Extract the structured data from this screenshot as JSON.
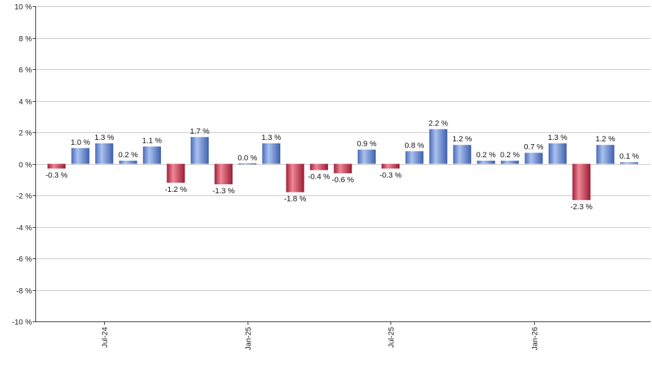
{
  "chart_data": {
    "type": "bar",
    "title": "",
    "xlabel": "",
    "ylabel": "",
    "ylim": [
      -10,
      10
    ],
    "grid": true,
    "legend": "none",
    "y_ticks": [
      "10 %",
      "8 %",
      "6 %",
      "4 %",
      "2 %",
      "0 %",
      "-2 %",
      "-4 %",
      "-6 %",
      "-8 %",
      "-10 %"
    ],
    "x_ticks": [
      {
        "label": "Jul-24",
        "index": 2
      },
      {
        "label": "Jan-25",
        "index": 8
      },
      {
        "label": "Jul-25",
        "index": 14
      },
      {
        "label": "Jan-26",
        "index": 20
      }
    ],
    "values": [
      -0.3,
      1.0,
      1.3,
      0.2,
      1.1,
      -1.2,
      1.7,
      -1.3,
      0.0,
      1.3,
      -1.8,
      -0.4,
      -0.6,
      0.9,
      -0.3,
      0.8,
      2.2,
      1.2,
      0.2,
      0.2,
      0.7,
      1.3,
      -2.3,
      1.2,
      0.1
    ],
    "labels": [
      "-0.3 %",
      "1.0 %",
      "1.3 %",
      "0.2 %",
      "1.1 %",
      "-1.2 %",
      "1.7 %",
      "-1.3 %",
      "0.0 %",
      "1.3 %",
      "-1.8 %",
      "-0.4 %",
      "-0.6 %",
      "0.9 %",
      "-0.3 %",
      "0.8 %",
      "2.2 %",
      "1.2 %",
      "0.2 %",
      "0.2 %",
      "0.7 %",
      "1.3 %",
      "-2.3 %",
      "1.2 %",
      "0.1 %"
    ],
    "colors": {
      "positive": "#7f9fd9",
      "negative": "#d2485e",
      "grid": "#c8c8c8"
    }
  }
}
